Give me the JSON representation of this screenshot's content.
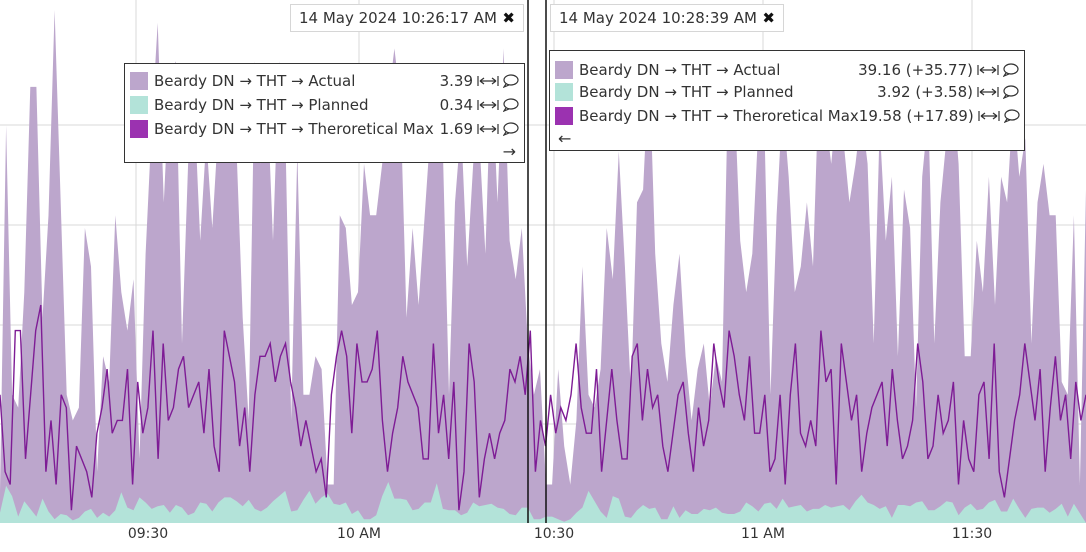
{
  "chart_data": {
    "type": "area",
    "x_tick_labels": [
      "09:30",
      "10 AM",
      "10:30",
      "11 AM",
      "11:30"
    ],
    "series": [
      {
        "name": "Beardy DN → THT → Actual",
        "color": "#bca6cc",
        "kind": "area"
      },
      {
        "name": "Beardy DN → THT → Planned",
        "color": "#b3e3d9",
        "kind": "area"
      },
      {
        "name": "Beardy DN → THT → Theroretical Max",
        "color": "#7e1c95",
        "kind": "line"
      }
    ],
    "actual": [
      2.5,
      31,
      10,
      9,
      18,
      34,
      34,
      16,
      24,
      40,
      25,
      10,
      8,
      9,
      23,
      20,
      4,
      13,
      11,
      24,
      18,
      15,
      19,
      5,
      21,
      31,
      39,
      25,
      35,
      36,
      14,
      28,
      33,
      22,
      30,
      23,
      31,
      32,
      31,
      29,
      16,
      8,
      36,
      28,
      34,
      22,
      36,
      31,
      8,
      29,
      10,
      10,
      13,
      12,
      3,
      3,
      24,
      23,
      17,
      18,
      28,
      24,
      24,
      28,
      33,
      37,
      33,
      16,
      23,
      17,
      24,
      31,
      29,
      29,
      10,
      25,
      31,
      20,
      28,
      30,
      21,
      36,
      25,
      37,
      22,
      19,
      23,
      14,
      10,
      12,
      3,
      3,
      12,
      6,
      3,
      8,
      20,
      10,
      9,
      12,
      23,
      19,
      29,
      20,
      10,
      25,
      26,
      36,
      21,
      14,
      11,
      17,
      21,
      13,
      8,
      12,
      14,
      9,
      13,
      11,
      34,
      34,
      22,
      18,
      21,
      31,
      31,
      10,
      24,
      33,
      27,
      18,
      20,
      25,
      20,
      35,
      32,
      28,
      33,
      30,
      25,
      28,
      32,
      28,
      14,
      31,
      22,
      27,
      13,
      26,
      23,
      9,
      27,
      32,
      14,
      25,
      30,
      34,
      28,
      13,
      13,
      22,
      18,
      27,
      17,
      27,
      25,
      33,
      27,
      30,
      14,
      25,
      28,
      24,
      24,
      11,
      10,
      24,
      3,
      26
    ],
    "planned": [
      0.8,
      2.9,
      2.1,
      0.5,
      1.7,
      1.1,
      0.5,
      1.9,
      0.9,
      0.3,
      0.7,
      0.6,
      0.2,
      0.4,
      0.9,
      1.1,
      0.4,
      0.8,
      0.5,
      1.0,
      2.4,
      1.2,
      1.0,
      2.0,
      1.6,
      1.1,
      1.3,
      1.4,
      0.8,
      1.4,
      1.2,
      0.6,
      0.8,
      1.6,
      1.5,
      0.9,
      1.6,
      2.0,
      2.0,
      1.7,
      1.3,
      1.8,
      1.1,
      0.9,
      1.2,
      1.7,
      2.1,
      2.5,
      0.9,
      1.0,
      1.8,
      2.5,
      1.5,
      2.0,
      2.3,
      1.5,
      1.4,
      1.6,
      0.7,
      1.0,
      0.3,
      0.3,
      0.6,
      2.1,
      3.2,
      1.9,
      1.9,
      1.8,
      1.0,
      1.1,
      1.6,
      1.6,
      3.1,
      1.1,
      1.0,
      1.0,
      0.6,
      0.8,
      1.6,
      1.3,
      1.4,
      1.5,
      1.2,
      1.1,
      0.7,
      0.6,
      1.2,
      1.2,
      0.3,
      0.3,
      0.5,
      0.5,
      0.3,
      0.1,
      0.3,
      0.8,
      1.2,
      2.5,
      1.7,
      0.9,
      0.4,
      2.1,
      1.9,
      0.5,
      0.4,
      1.0,
      1.4,
      1.1,
      1.2,
      0.3,
      0.3,
      1.3,
      0.4,
      1.0,
      0.7,
      0.7,
      1.1,
      1.0,
      1.2,
      0.8,
      0.7,
      0.7,
      0.9,
      1.6,
      1.3,
      0.9,
      1.5,
      1.6,
      1.1,
      1.9,
      1.2,
      1.3,
      1.4,
      0.9,
      1.1,
      1.1,
      1.4,
      1.2,
      1.3,
      1.4,
      1.0,
      1.7,
      2.2,
      1.6,
      1.4,
      1.1,
      1.3,
      0.4,
      1.4,
      1.4,
      1.3,
      1.6,
      1.7,
      1.0,
      1.0,
      1.3,
      1.7,
      1.6,
      0.6,
      1.2,
      1.5,
      1.0,
      1.1,
      1.6,
      1.8,
      0.9,
      0.9,
      1.9,
      1.1,
      0.4,
      1.1,
      1.2,
      1.2,
      0.8,
      1.1,
      1.5,
      0.5,
      1.5
    ],
    "theoretical_max": [
      10,
      4,
      3,
      15,
      15,
      5,
      10,
      15,
      17,
      4,
      8,
      3,
      10,
      9,
      1,
      6,
      5,
      4,
      2,
      7,
      9,
      12,
      7,
      8,
      8,
      12,
      3,
      11,
      7,
      9,
      15,
      5,
      14,
      8,
      9,
      12,
      13,
      9,
      10,
      11,
      7,
      12,
      6,
      4,
      15,
      13,
      11,
      6,
      9,
      4,
      10,
      13,
      13,
      14,
      11,
      13,
      14,
      11,
      9,
      6,
      8,
      6,
      4,
      5,
      2,
      10,
      13,
      15,
      13,
      7,
      14,
      11,
      11,
      12,
      15,
      8,
      4,
      7,
      9,
      13,
      11,
      10,
      9,
      5,
      5,
      14,
      7,
      10,
      5,
      11,
      1,
      4,
      14,
      11,
      2,
      5,
      7,
      5,
      7,
      8,
      12,
      11,
      13,
      10,
      15,
      4,
      8,
      6,
      10,
      7,
      9,
      8,
      10,
      14,
      9,
      7,
      7,
      12,
      4,
      8,
      12,
      8,
      5,
      5,
      13,
      14,
      8,
      12,
      9,
      10,
      6,
      4,
      7,
      10,
      11,
      7,
      4,
      9,
      6,
      8,
      14,
      11,
      9,
      15,
      13,
      10,
      8,
      13,
      7,
      7,
      10,
      4,
      5,
      10,
      3,
      10,
      14,
      7,
      6,
      8,
      6,
      15,
      11,
      12,
      3,
      14,
      11,
      8,
      10,
      4,
      7,
      9,
      10,
      11,
      6,
      12,
      8,
      5,
      6,
      8,
      14,
      11,
      5,
      6,
      10,
      7,
      8,
      11,
      3,
      8,
      5,
      4,
      10,
      11,
      5,
      14,
      4,
      2,
      5,
      8,
      10,
      14,
      11,
      8,
      12,
      4,
      9,
      13,
      8,
      10,
      5,
      11,
      8,
      10
    ]
  },
  "cursor_left": {
    "timestamp": "14 May 2024 10:26:17 AM",
    "close_icon": "close-icon",
    "rows": [
      {
        "label": "Beardy DN → THT → Actual",
        "value": "3.39",
        "color": "#bca6cc"
      },
      {
        "label": "Beardy DN → THT → Planned",
        "value": "0.34",
        "color": "#b3e3d9"
      },
      {
        "label": "Beardy DN → THT → Theroretical Max",
        "value": "1.69",
        "color": "#9b32b0"
      }
    ],
    "arrow": "→"
  },
  "cursor_right": {
    "timestamp": "14 May 2024 10:28:39 AM",
    "close_icon": "close-icon",
    "rows": [
      {
        "label": "Beardy DN → THT → Actual",
        "value": "39.16 (+35.77)",
        "color": "#bca6cc"
      },
      {
        "label": "Beardy DN → THT → Planned",
        "value": "3.92 (+3.58)",
        "color": "#b3e3d9"
      },
      {
        "label": "Beardy DN → THT → Theroretical Max",
        "value": "19.58 (+17.89)",
        "color": "#9b32b0"
      }
    ],
    "arrow": "←"
  }
}
